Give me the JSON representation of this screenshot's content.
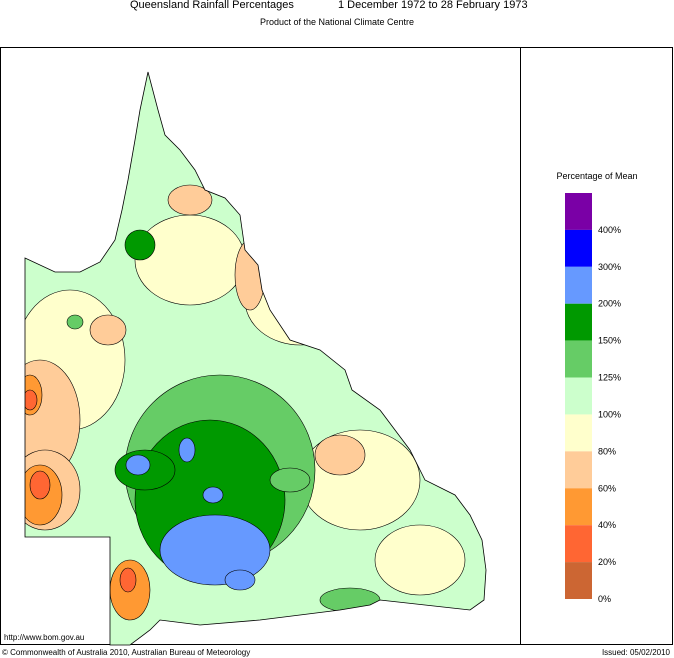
{
  "header": {
    "title": "Queensland Rainfall Percentages",
    "period": "1 December 1972 to 28 February 1973",
    "subtitle": "Product of the National Climate Centre"
  },
  "legend": {
    "title": "Percentage of Mean",
    "items": [
      {
        "label": "400%",
        "color": "#7a00a6"
      },
      {
        "label": "300%",
        "color": "#0000ff"
      },
      {
        "label": "200%",
        "color": "#6699ff"
      },
      {
        "label": "150%",
        "color": "#009900"
      },
      {
        "label": "125%",
        "color": "#66cc66"
      },
      {
        "label": "100%",
        "color": "#ccffcc"
      },
      {
        "label": "80%",
        "color": "#ffffcc"
      },
      {
        "label": "60%",
        "color": "#ffcc99"
      },
      {
        "label": "40%",
        "color": "#ff9933"
      },
      {
        "label": "20%",
        "color": "#ff6633"
      },
      {
        "label": "0%",
        "color": "#cc6633"
      }
    ]
  },
  "footer": {
    "url": "http://www.bom.gov.au",
    "copyright": "© Commonwealth of Australia 2010, Australian Bureau of Meteorology",
    "issued": "Issued: 05/02/2010"
  }
}
